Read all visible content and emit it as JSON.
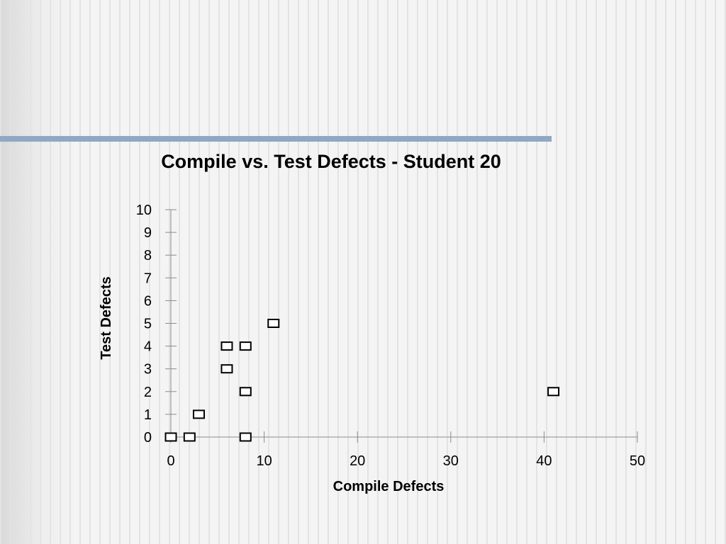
{
  "colors": {
    "accent_bar": "#8fa8c4",
    "axis": "#8c8c8c",
    "marker_stroke": "#000000",
    "marker_fill": "#ffffff",
    "text": "#000000"
  },
  "chart_data": {
    "type": "scatter",
    "title": "Compile vs. Test Defects - Student 20",
    "xlabel": "Compile Defects",
    "ylabel": "Test Defects",
    "xlim": [
      0,
      50
    ],
    "ylim": [
      0,
      10
    ],
    "x_ticks": [
      0,
      10,
      20,
      30,
      40,
      50
    ],
    "y_ticks": [
      0,
      1,
      2,
      3,
      4,
      5,
      6,
      7,
      8,
      9,
      10
    ],
    "grid": false,
    "legend": "none",
    "marker": "open-square",
    "points": [
      {
        "x": 0,
        "y": 0
      },
      {
        "x": 2,
        "y": 0
      },
      {
        "x": 8,
        "y": 0
      },
      {
        "x": 3,
        "y": 1
      },
      {
        "x": 8,
        "y": 2
      },
      {
        "x": 41,
        "y": 2
      },
      {
        "x": 6,
        "y": 3
      },
      {
        "x": 6,
        "y": 4
      },
      {
        "x": 8,
        "y": 4
      },
      {
        "x": 11,
        "y": 5
      }
    ]
  }
}
